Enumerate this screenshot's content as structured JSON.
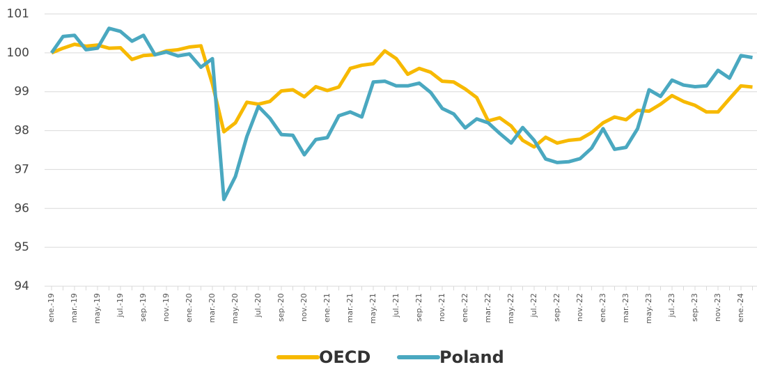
{
  "chart_data": {
    "type": "line",
    "categories": [
      "ene.-19",
      null,
      "mar.-19",
      null,
      "may.-19",
      null,
      "jul.-19",
      null,
      "sep.-19",
      null,
      "nov.-19",
      null,
      "ene.-20",
      null,
      "mar.-20",
      null,
      "may.-20",
      null,
      "jul.-20",
      null,
      "sep.-20",
      null,
      "nov.-20",
      null,
      "ene.-21",
      null,
      "mar.-21",
      null,
      "may.-21",
      null,
      "jul.-21",
      null,
      "sep.-21",
      null,
      "nov.-21",
      null,
      "ene.-22",
      null,
      "mar.-22",
      null,
      "may.-22",
      null,
      "jul.-22",
      null,
      "sep.-22",
      null,
      "nov.-22",
      null,
      "ene.-23",
      null,
      "mar.-23",
      null,
      "may.-23",
      null,
      "jul.-23",
      null,
      "sep.-23",
      null,
      "nov.-23",
      null,
      "ene.-24",
      null
    ],
    "series": [
      {
        "name": "OECD",
        "color": "#f7b900",
        "values": [
          100.0,
          100.12,
          100.22,
          100.17,
          100.2,
          100.12,
          100.13,
          99.83,
          99.93,
          99.95,
          100.05,
          100.08,
          100.15,
          100.18,
          99.2,
          97.97,
          98.2,
          98.73,
          98.68,
          98.75,
          99.02,
          99.05,
          98.87,
          99.13,
          99.03,
          99.12,
          99.6,
          99.68,
          99.72,
          100.05,
          99.85,
          99.45,
          99.6,
          99.5,
          99.27,
          99.25,
          99.07,
          98.85,
          98.25,
          98.33,
          98.12,
          97.75,
          97.58,
          97.83,
          97.68,
          97.75,
          97.78,
          97.95,
          98.2,
          98.35,
          98.28,
          98.52,
          98.5,
          98.68,
          98.9,
          98.75,
          98.65,
          98.48,
          98.48,
          98.82,
          99.15,
          99.12
        ]
      },
      {
        "name": "Poland",
        "color": "#4aa8c0",
        "values": [
          100.0,
          100.42,
          100.45,
          100.08,
          100.12,
          100.63,
          100.55,
          100.3,
          100.45,
          99.95,
          100.02,
          99.92,
          99.97,
          99.63,
          99.85,
          96.23,
          96.82,
          97.85,
          98.62,
          98.32,
          97.9,
          97.88,
          97.38,
          97.77,
          97.82,
          98.38,
          98.48,
          98.35,
          99.25,
          99.27,
          99.15,
          99.15,
          99.22,
          98.98,
          98.57,
          98.43,
          98.07,
          98.3,
          98.2,
          97.93,
          97.68,
          98.08,
          97.75,
          97.27,
          97.18,
          97.2,
          97.28,
          97.55,
          98.05,
          97.52,
          97.57,
          98.05,
          99.05,
          98.88,
          99.3,
          99.17,
          99.13,
          99.15,
          99.55,
          99.35,
          99.93,
          99.88
        ]
      }
    ],
    "ylim": [
      94,
      101
    ],
    "yticks": [
      94,
      95,
      96,
      97,
      98,
      99,
      100,
      101
    ],
    "grid": true,
    "legend": "bottom"
  }
}
